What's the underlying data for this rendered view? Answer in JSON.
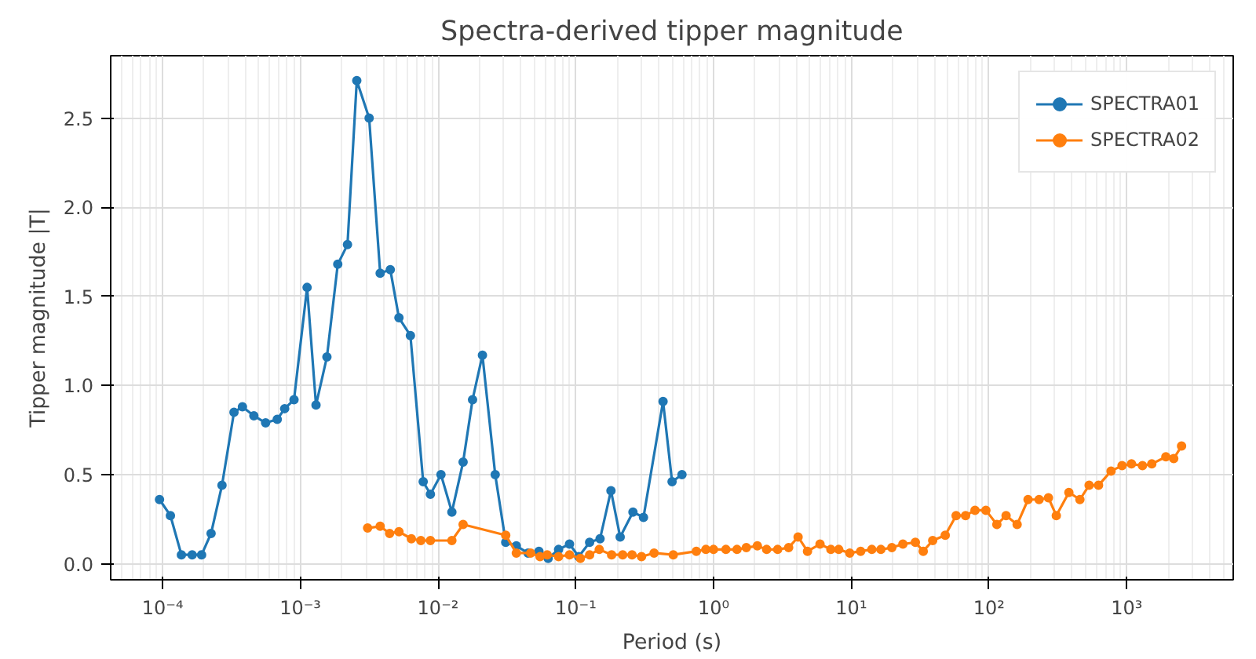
{
  "chart_data": {
    "type": "line",
    "title": "Spectra-derived tipper magnitude",
    "xlabel": "Period (s)",
    "ylabel": "Tipper magnitude |T|",
    "log": "x",
    "grid": true,
    "legend": "top right",
    "marker": "circle",
    "line_style": "solid",
    "xlim": [
      4.2e-05,
      5930
    ],
    "ylim": [
      -0.09,
      2.85
    ],
    "xticks": [
      {
        "value": 0.0001,
        "label": "10⁻⁴"
      },
      {
        "value": 0.001,
        "label": "10⁻³"
      },
      {
        "value": 0.01,
        "label": "10⁻²"
      },
      {
        "value": 0.1,
        "label": "10⁻¹"
      },
      {
        "value": 1,
        "label": "10⁰"
      },
      {
        "value": 10,
        "label": "10¹"
      },
      {
        "value": 100,
        "label": "10²"
      },
      {
        "value": 1000,
        "label": "10³"
      }
    ],
    "yticks": [
      {
        "value": 0,
        "label": "0.0"
      },
      {
        "value": 0.5,
        "label": "0.5"
      },
      {
        "value": 1,
        "label": "1.0"
      },
      {
        "value": 1.5,
        "label": "1.5"
      },
      {
        "value": 2,
        "label": "2.0"
      },
      {
        "value": 2.5,
        "label": "2.5"
      }
    ],
    "series": [
      {
        "name": "SPECTRA01",
        "color": "#1f77b4",
        "x": [
          9.5e-05,
          0.000114,
          0.000137,
          0.000164,
          0.000192,
          0.000225,
          0.00027,
          0.00033,
          0.00038,
          0.00046,
          0.00056,
          0.00068,
          0.00077,
          0.0009,
          0.00112,
          0.0013,
          0.00156,
          0.00187,
          0.0022,
          0.00257,
          0.00316,
          0.0038,
          0.0045,
          0.0052,
          0.0063,
          0.0078,
          0.0088,
          0.0105,
          0.0126,
          0.0152,
          0.0178,
          0.021,
          0.026,
          0.031,
          0.037,
          0.045,
          0.054,
          0.063,
          0.075,
          0.09,
          0.105,
          0.126,
          0.15,
          0.18,
          0.21,
          0.26,
          0.31,
          0.43,
          0.5,
          0.59
        ],
        "values": [
          0.36,
          0.27,
          0.05,
          0.05,
          0.05,
          0.17,
          0.44,
          0.85,
          0.88,
          0.83,
          0.79,
          0.81,
          0.87,
          0.92,
          1.55,
          0.89,
          1.16,
          1.68,
          1.79,
          2.71,
          2.5,
          1.63,
          1.65,
          1.38,
          1.28,
          0.46,
          0.39,
          0.5,
          0.29,
          0.57,
          0.92,
          1.17,
          0.5,
          0.12,
          0.1,
          0.06,
          0.07,
          0.03,
          0.08,
          0.11,
          0.04,
          0.12,
          0.14,
          0.41,
          0.15,
          0.29,
          0.26,
          0.91,
          0.46,
          0.5
        ]
      },
      {
        "name": "SPECTRA02",
        "color": "#ff7f0e",
        "x": [
          0.00308,
          0.0038,
          0.00445,
          0.0052,
          0.0064,
          0.0075,
          0.0088,
          0.0126,
          0.0152,
          0.031,
          0.037,
          0.047,
          0.055,
          0.062,
          0.075,
          0.09,
          0.108,
          0.126,
          0.148,
          0.182,
          0.219,
          0.256,
          0.3,
          0.37,
          0.51,
          0.75,
          0.88,
          1.0,
          1.23,
          1.48,
          1.73,
          2.08,
          2.43,
          2.92,
          3.51,
          4.11,
          4.81,
          5.93,
          7.11,
          8.11,
          9.75,
          11.7,
          14.1,
          16.4,
          19.7,
          23.7,
          29.2,
          33.3,
          39.0,
          48.1,
          57.7,
          67.6,
          79.1,
          94.9,
          114,
          133,
          160,
          192,
          231,
          270,
          308,
          380,
          457,
          533,
          624,
          769,
          924,
          1082,
          1300,
          1520,
          1923,
          2193,
          2500
        ],
        "values": [
          0.2,
          0.21,
          0.17,
          0.18,
          0.14,
          0.13,
          0.13,
          0.13,
          0.22,
          0.16,
          0.06,
          0.06,
          0.04,
          0.05,
          0.04,
          0.05,
          0.03,
          0.05,
          0.08,
          0.05,
          0.05,
          0.05,
          0.04,
          0.06,
          0.05,
          0.07,
          0.08,
          0.08,
          0.08,
          0.08,
          0.09,
          0.1,
          0.08,
          0.08,
          0.09,
          0.15,
          0.07,
          0.11,
          0.08,
          0.08,
          0.06,
          0.07,
          0.08,
          0.08,
          0.09,
          0.11,
          0.12,
          0.07,
          0.13,
          0.16,
          0.27,
          0.27,
          0.3,
          0.3,
          0.22,
          0.27,
          0.22,
          0.36,
          0.36,
          0.37,
          0.27,
          0.4,
          0.36,
          0.44,
          0.44,
          0.52,
          0.55,
          0.56,
          0.55,
          0.56,
          0.6,
          0.59,
          0.66
        ]
      }
    ]
  }
}
